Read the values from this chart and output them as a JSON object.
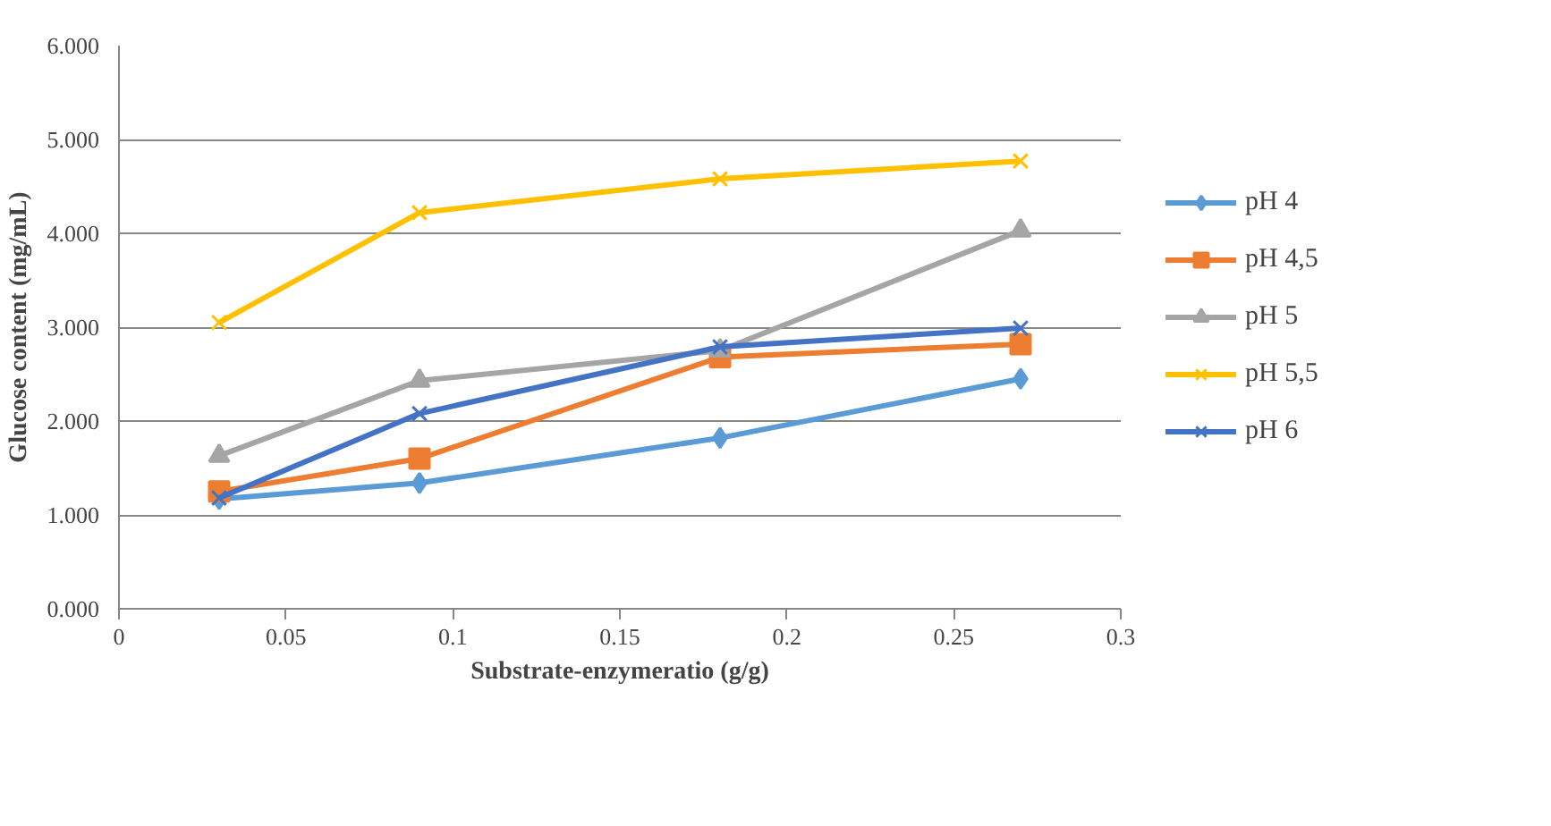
{
  "chart_data": {
    "type": "line",
    "xlabel": "Substrate-enzymeratio (g/g)",
    "ylabel": "Glucose content (mg/mL)",
    "x": [
      0.03,
      0.09,
      0.18,
      0.27
    ],
    "series": [
      {
        "name": "pH 4",
        "color": "#5b9bd5",
        "marker": "diamond",
        "values": [
          1.17,
          1.34,
          1.82,
          2.45
        ]
      },
      {
        "name": "pH 4,5",
        "color": "#ed7d31",
        "marker": "square",
        "values": [
          1.25,
          1.6,
          2.68,
          2.82
        ]
      },
      {
        "name": "pH 5",
        "color": "#a5a5a5",
        "marker": "triangle",
        "values": [
          1.63,
          2.43,
          2.75,
          4.03
        ]
      },
      {
        "name": "pH 5,5",
        "color": "#ffc000",
        "marker": "cross",
        "values": [
          3.05,
          4.22,
          4.58,
          4.77
        ]
      },
      {
        "name": "pH 6",
        "color": "#4472c4",
        "marker": "cross",
        "values": [
          1.18,
          2.08,
          2.79,
          2.99
        ]
      }
    ],
    "xlim": [
      0,
      0.3
    ],
    "xticks": [
      0,
      0.05,
      0.1,
      0.15,
      0.2,
      0.25,
      0.3
    ],
    "ylim": [
      0,
      6
    ],
    "yticks": [
      {
        "value": 0,
        "label": "0.000"
      },
      {
        "value": 1,
        "label": "1.000"
      },
      {
        "value": 2,
        "label": "2.000"
      },
      {
        "value": 3,
        "label": "3.000"
      },
      {
        "value": 4,
        "label": "4.000"
      },
      {
        "value": 5,
        "label": "5.000"
      },
      {
        "value": 6,
        "label": "6.000"
      }
    ],
    "grid": "y",
    "legend": "right",
    "line_style": "solid"
  }
}
